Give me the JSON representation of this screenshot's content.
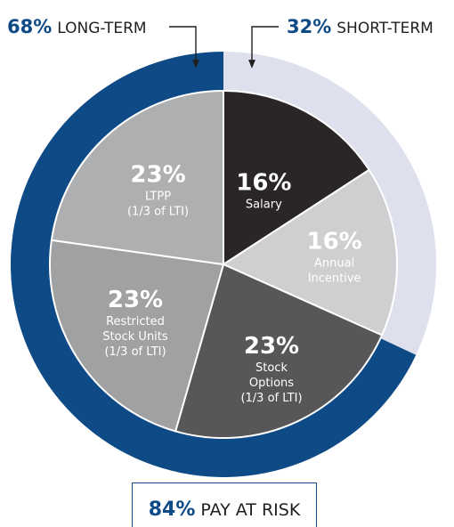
{
  "chart_data": {
    "type": "pie",
    "outer_ring": [
      {
        "pct": "68%",
        "label": "LONG-TERM",
        "value": 68,
        "color": "#0e4a86"
      },
      {
        "pct": "32%",
        "label": "SHORT-TERM",
        "value": 32,
        "color": "#dfe0ee"
      }
    ],
    "slices": [
      {
        "pct": "16%",
        "label_lines": [
          "Salary"
        ],
        "value": 16,
        "color": "#2a2627"
      },
      {
        "pct": "16%",
        "label_lines": [
          "Annual",
          "Incentive"
        ],
        "value": 16,
        "color": "#cfcfd1"
      },
      {
        "pct": "23%",
        "label_lines": [
          "Stock",
          "Options",
          "(1/3 of LTI)"
        ],
        "value": 23,
        "color": "#575759"
      },
      {
        "pct": "23%",
        "label_lines": [
          "Restricted",
          "Stock Units",
          "(1/3 of LTI)"
        ],
        "value": 23,
        "color": "#a0a1a3"
      },
      {
        "pct": "23%",
        "label_lines": [
          "LTPP",
          "(1/3 of LTI)"
        ],
        "value": 23,
        "color": "#aeafb1"
      }
    ],
    "callout": {
      "pct": "84%",
      "label": "PAY AT RISK"
    },
    "colors": {
      "accent": "#0e4a86",
      "text": "#1f1f1f"
    }
  }
}
